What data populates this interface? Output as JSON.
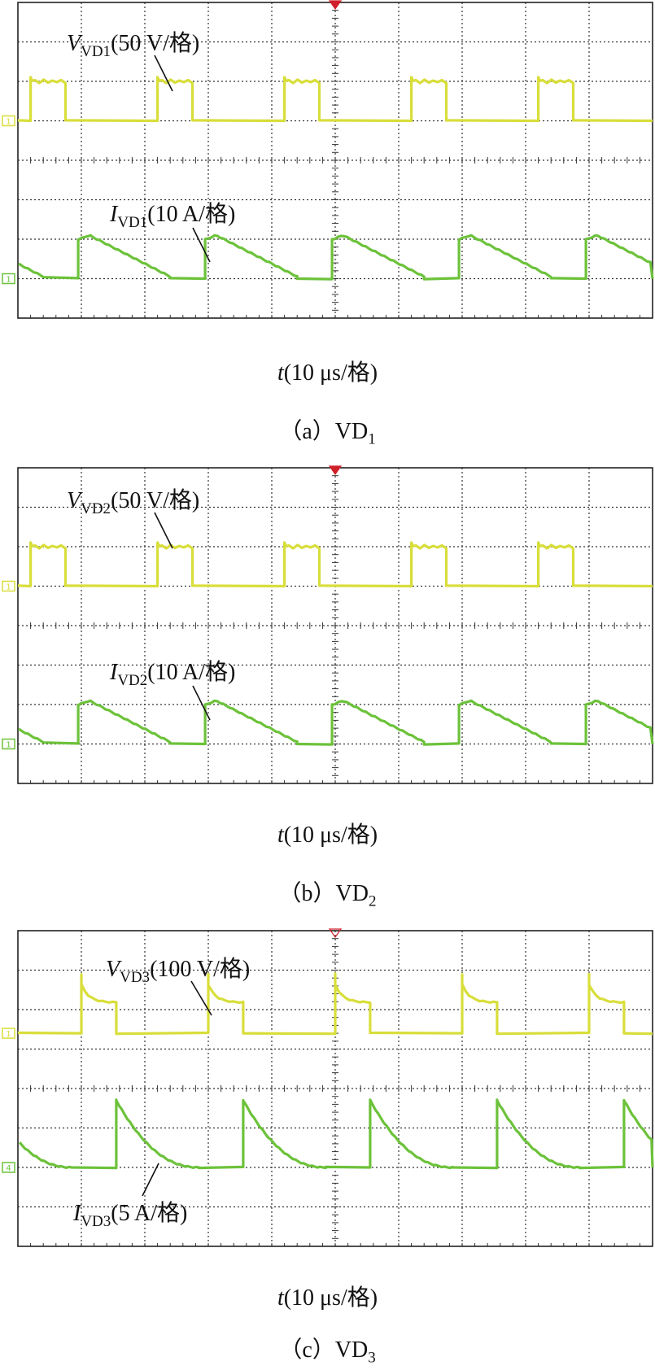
{
  "chart_data": [
    {
      "type": "line",
      "panel": "a",
      "caption": "（a）VD₁",
      "caption_prefix": "（a）VD",
      "caption_sub": "1",
      "xlabel_var": "t",
      "xlabel_rest": "(10 μs/格)",
      "x_units": "µs",
      "x_range": [
        0,
        100
      ],
      "x_divisions": 10,
      "y_divisions": 8,
      "series": [
        {
          "name": "V_VD1",
          "label_main": "V",
          "label_sub": "VD1",
          "label_rest": "(50 V/格)",
          "scale_per_div": "50 V",
          "color": "#d8de3a",
          "channel_marker": "1",
          "baseline_div": 5,
          "waveform": "pulse",
          "period_us": 20,
          "high_start_us": [
            2,
            22,
            42,
            62,
            82
          ],
          "high_width_us": 5.5,
          "high_level_div": 1.0,
          "spike_div": 0.12
        },
        {
          "name": "I_VD1",
          "label_main": "I",
          "label_sub": "VD1",
          "label_rest": "(10 A/格)",
          "scale_per_div": "10 A",
          "color": "#6cc23a",
          "channel_marker": "1",
          "baseline_div": 1,
          "waveform": "decay",
          "rise_us": [
            9.5,
            29.5,
            49.5,
            69.5,
            89.5
          ],
          "peak_div": 1.1,
          "end_us_after_rise": 14.5,
          "end_div": 0.05,
          "zero_duration_us": 5.5
        }
      ]
    },
    {
      "type": "line",
      "panel": "b",
      "caption": "（b）VD₂",
      "caption_prefix": "（b）VD",
      "caption_sub": "2",
      "xlabel_var": "t",
      "xlabel_rest": "(10 μs/格)",
      "x_units": "µs",
      "x_range": [
        0,
        100
      ],
      "x_divisions": 10,
      "y_divisions": 8,
      "series": [
        {
          "name": "V_VD2",
          "label_main": "V",
          "label_sub": "VD2",
          "label_rest": "(50 V/格)",
          "scale_per_div": "50 V",
          "color": "#d8de3a",
          "channel_marker": "1",
          "baseline_div": 5,
          "waveform": "pulse",
          "period_us": 20,
          "high_start_us": [
            2,
            22,
            42,
            62,
            82
          ],
          "high_width_us": 5.5,
          "high_level_div": 1.0,
          "spike_div": 0.12
        },
        {
          "name": "I_VD2",
          "label_main": "I",
          "label_sub": "VD2",
          "label_rest": "(10 A/格)",
          "scale_per_div": "10 A",
          "color": "#6cc23a",
          "channel_marker": "1",
          "baseline_div": 1,
          "waveform": "decay",
          "rise_us": [
            9.5,
            29.5,
            49.5,
            69.5,
            89.5
          ],
          "peak_div": 1.1,
          "end_us_after_rise": 14.5,
          "end_div": 0.05,
          "zero_duration_us": 5.5
        }
      ]
    },
    {
      "type": "line",
      "panel": "c",
      "caption": "（c）VD₃",
      "caption_prefix": "（c）VD",
      "caption_sub": "3",
      "xlabel_var": "t",
      "xlabel_rest": "(10 μs/格)",
      "x_units": "µs",
      "x_range": [
        0,
        100
      ],
      "x_divisions": 10,
      "y_divisions": 8,
      "series": [
        {
          "name": "V_VD3",
          "label_main": "V",
          "label_sub": "VD3",
          "label_rest": "(100 V/格)",
          "scale_per_div": "100 V",
          "color": "#d8de3a",
          "channel_marker": "1",
          "baseline_div": 5.4,
          "waveform": "pulse-decay",
          "high_start_us": [
            10,
            30,
            50,
            70,
            90
          ],
          "high_width_us": 5.5,
          "high_level_div": 1.0,
          "spike_div": 0.5
        },
        {
          "name": "I_VD3",
          "label_main": "I",
          "label_sub": "VD3",
          "label_rest": "(5 A/格)",
          "scale_per_div": "5 A",
          "color": "#6cc23a",
          "channel_marker": "4",
          "baseline_div": 2,
          "waveform": "spike-decay",
          "rise_us": [
            15.5,
            35.5,
            55.5,
            75.5,
            95.5
          ],
          "peak_div": 1.7,
          "end_us_after_rise": 13,
          "end_div": 0.0,
          "zero_duration_us": 7
        }
      ]
    }
  ]
}
